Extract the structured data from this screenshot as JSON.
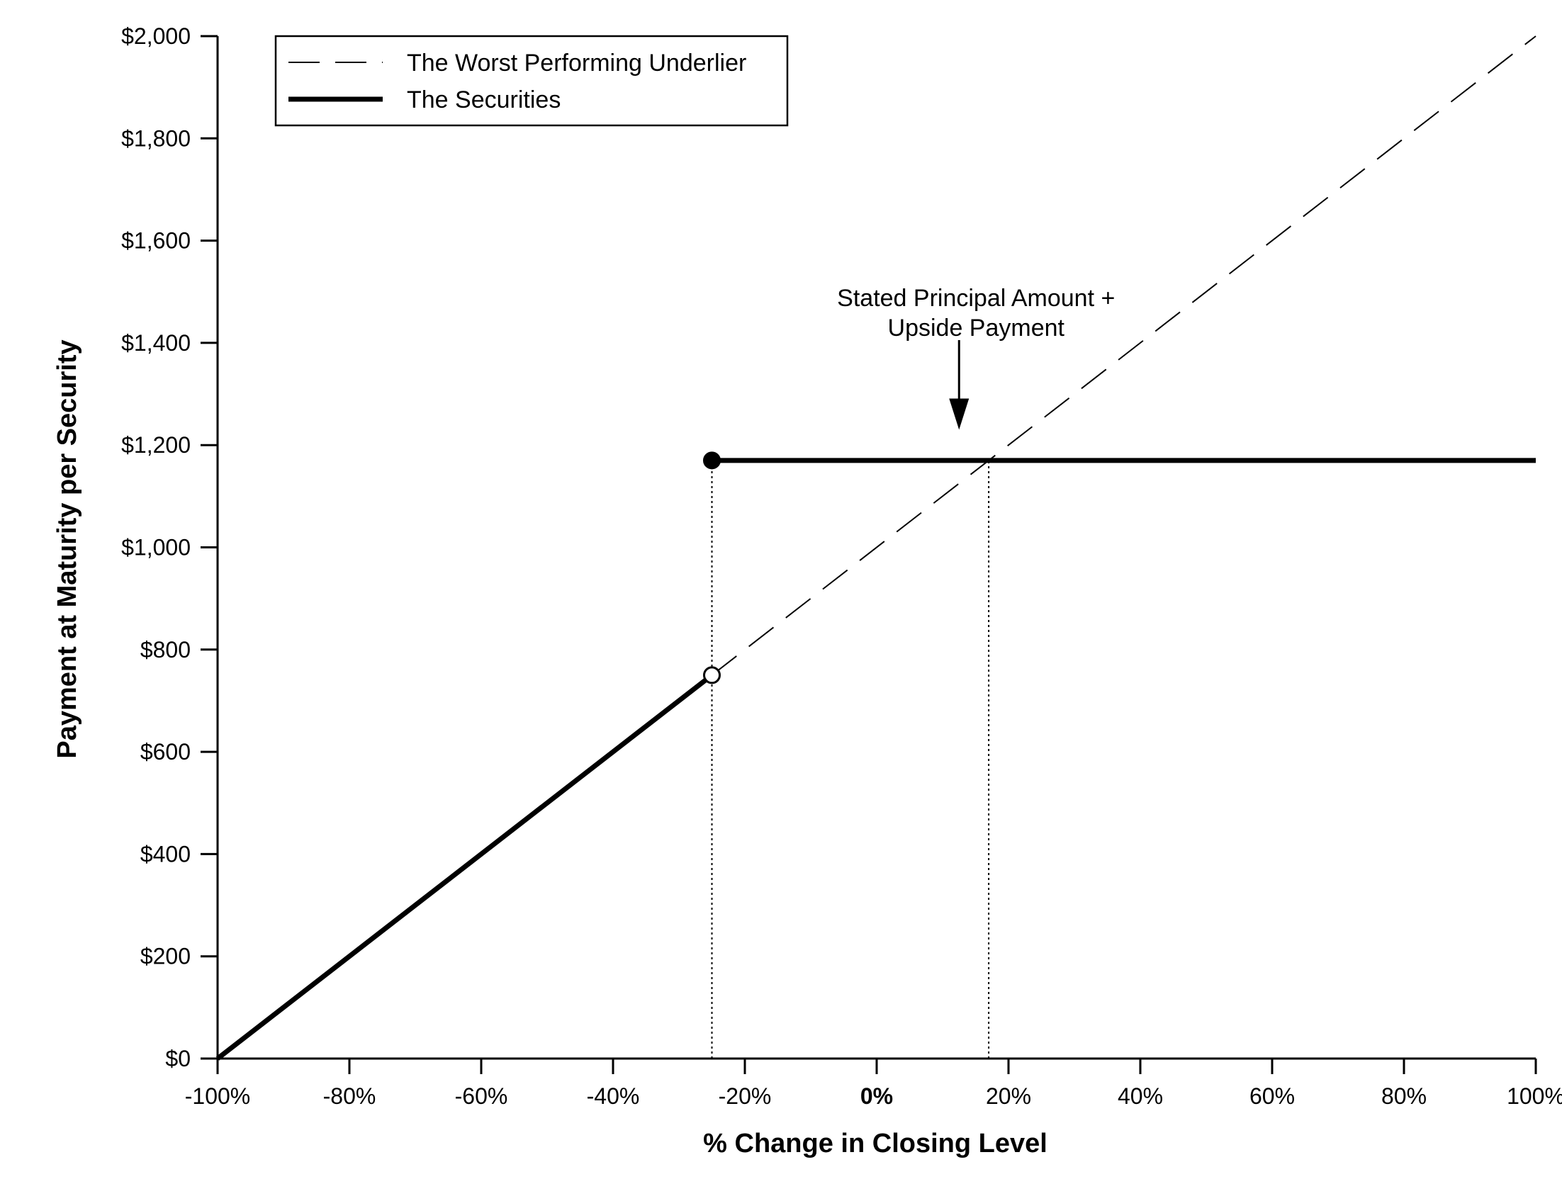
{
  "chart_data": {
    "type": "line",
    "title": "",
    "xlabel": "% Change in Closing Level",
    "ylabel": "Payment at Maturity per Security",
    "xlim": [
      -100,
      100
    ],
    "ylim": [
      0,
      2000
    ],
    "x_ticks": [
      -100,
      -80,
      -60,
      -40,
      -20,
      0,
      20,
      40,
      60,
      80,
      100
    ],
    "x_tick_labels": [
      "-100%",
      "-80%",
      "-60%",
      "-40%",
      "-20%",
      "0%",
      "20%",
      "40%",
      "60%",
      "80%",
      "100%"
    ],
    "y_ticks": [
      0,
      200,
      400,
      600,
      800,
      1000,
      1200,
      1400,
      1600,
      1800,
      2000
    ],
    "y_tick_labels": [
      "$0",
      "$200",
      "$400",
      "$600",
      "$800",
      "$1,000",
      "$1,200",
      "$1,400",
      "$1,600",
      "$1,800",
      "$2,000"
    ],
    "grid": false,
    "legend_position": "top-left",
    "series": [
      {
        "name": "The Worst Performing Underlier",
        "style": "dashed",
        "points": [
          [
            -25,
            750
          ],
          [
            100,
            2000
          ]
        ]
      },
      {
        "name": "The Securities",
        "style": "solid-thick",
        "segments": [
          [
            [
              -100,
              0
            ],
            [
              -25,
              750
            ]
          ],
          [
            [
              -25,
              1170
            ],
            [
              100,
              1170
            ]
          ]
        ]
      }
    ],
    "markers": [
      {
        "x": -25,
        "y": 1170,
        "fill": "filled"
      },
      {
        "x": -25,
        "y": 750,
        "fill": "open"
      }
    ],
    "reference_lines": [
      {
        "x": -25,
        "y_from": 0,
        "y_to": 1170,
        "style": "dotted"
      },
      {
        "x": 17,
        "y_from": 0,
        "y_to": 1170,
        "style": "dotted"
      }
    ],
    "annotations": [
      {
        "lines": [
          "Stated Principal Amount +",
          "Upside Payment"
        ],
        "arrow_to": {
          "x": 12.5,
          "y": 1230
        }
      }
    ],
    "colors": {
      "line": "#000000",
      "background": "#ffffff"
    }
  }
}
